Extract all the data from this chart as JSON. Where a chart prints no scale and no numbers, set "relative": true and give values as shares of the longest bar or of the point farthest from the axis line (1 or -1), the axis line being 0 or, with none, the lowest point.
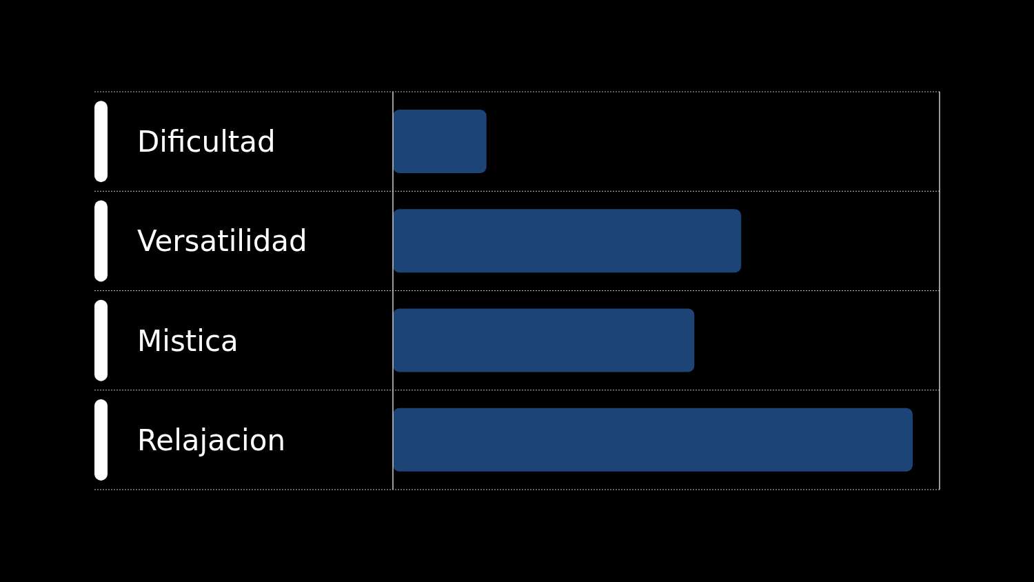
{
  "chart_data": {
    "type": "bar",
    "orientation": "horizontal",
    "relative": true,
    "categories": [
      "Dificultad",
      "Versatilidad",
      "Mistica",
      "Relajacion"
    ],
    "values": [
      0.18,
      0.67,
      0.58,
      1
    ],
    "color": "#1d4477",
    "grid": true
  }
}
